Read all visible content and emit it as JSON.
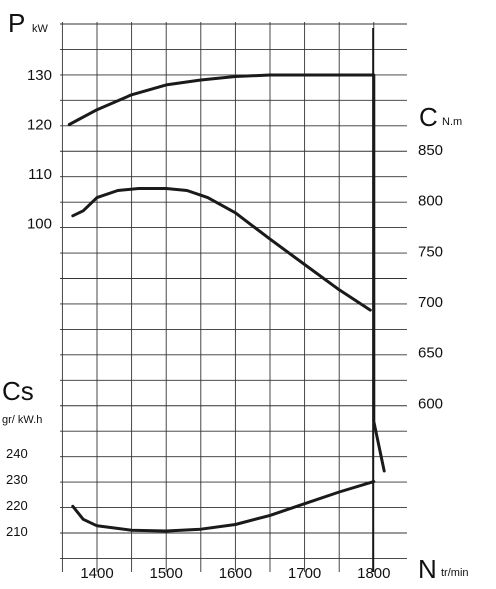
{
  "chart_data": {
    "type": "line",
    "x_axis": {
      "label": "N",
      "unit": "tr/min",
      "ticks": [
        1400,
        1500,
        1600,
        1700,
        1800
      ]
    },
    "power_axis": {
      "label": "P",
      "unit": "kW",
      "ticks": [
        100,
        110,
        120,
        130
      ]
    },
    "torque_axis": {
      "label": "C",
      "unit": "N.m",
      "ticks": [
        600,
        650,
        700,
        750,
        800,
        850
      ]
    },
    "consumption_axis": {
      "label": "Cs",
      "unit": "gr/ kW.h",
      "ticks": [
        210,
        220,
        230,
        240
      ]
    },
    "grid": true,
    "series": [
      {
        "name": "P",
        "axis": "power",
        "x": [
          1360,
          1400,
          1450,
          1500,
          1550,
          1600,
          1650,
          1700,
          1750,
          1800,
          1800,
          1815
        ],
        "y": [
          120,
          123,
          126,
          128,
          129,
          129.7,
          130,
          130,
          130,
          130,
          60,
          50
        ]
      },
      {
        "name": "C",
        "axis": "torque",
        "x": [
          1365,
          1380,
          1400,
          1430,
          1460,
          1500,
          1530,
          1560,
          1600,
          1650,
          1700,
          1750,
          1795
        ],
        "y": [
          785,
          790,
          803,
          810,
          812,
          812,
          810,
          803,
          788,
          762,
          737,
          712,
          692
        ]
      },
      {
        "name": "Cs",
        "axis": "consumption",
        "x": [
          1365,
          1380,
          1400,
          1450,
          1500,
          1550,
          1600,
          1650,
          1700,
          1750,
          1800
        ],
        "y": [
          219.5,
          214.5,
          212,
          210.3,
          210,
          210.7,
          212.5,
          216,
          220.5,
          225,
          229
        ]
      }
    ]
  }
}
